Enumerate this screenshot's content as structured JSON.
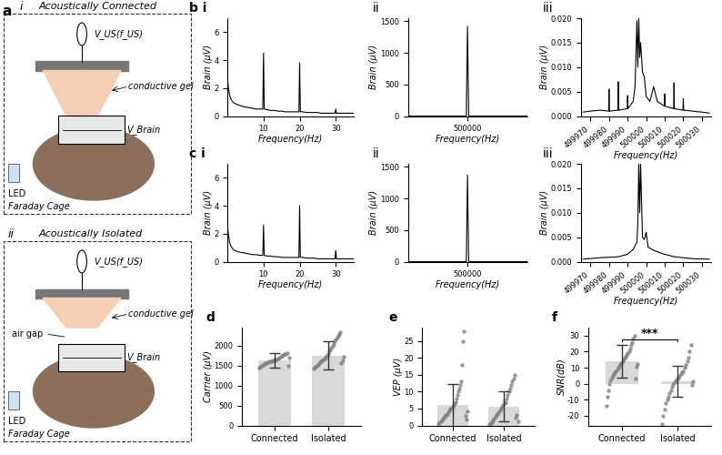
{
  "diagram": {
    "label": "a",
    "sub_i": "i",
    "title_i": "Acoustically Connected",
    "sub_ii": "ii",
    "title_ii": "Acoustically Isolated",
    "source": "V_US(f_US)",
    "gel": "conductive gel",
    "electrode": "V_Brain",
    "led": "LED",
    "cage": "Faraday Cage",
    "air": "air gap"
  },
  "chart_data": [
    {
      "type": "line",
      "panel": "b i",
      "xlabel": "Frequency(Hz)",
      "ylabel": "Brain (μV)",
      "color": "#000000",
      "x": [
        0,
        0.3,
        0.6,
        1,
        1.5,
        2,
        3,
        4,
        5,
        6,
        7,
        8,
        9,
        9.8,
        10,
        10.2,
        11,
        12,
        13,
        14,
        15,
        16,
        17,
        18,
        19,
        19.8,
        20,
        20.2,
        21,
        22,
        23,
        24,
        25,
        26,
        27,
        28,
        29,
        29.8,
        30,
        30.2,
        31,
        32,
        33,
        34,
        35
      ],
      "values": [
        2.6,
        2.0,
        1.5,
        1.2,
        1.0,
        0.9,
        0.8,
        0.7,
        0.65,
        0.6,
        0.55,
        0.5,
        0.5,
        0.5,
        4.5,
        0.5,
        0.45,
        0.4,
        0.4,
        0.35,
        0.35,
        0.3,
        0.3,
        0.3,
        0.3,
        0.3,
        3.8,
        0.3,
        0.3,
        0.25,
        0.25,
        0.25,
        0.25,
        0.2,
        0.2,
        0.2,
        0.2,
        0.2,
        0.5,
        0.2,
        0.2,
        0.2,
        0.2,
        0.2,
        0.2
      ],
      "xlim": [
        0,
        35
      ],
      "xticks": [
        10,
        20,
        30
      ],
      "ylim": [
        0,
        7
      ],
      "yticks": [
        0,
        2,
        4,
        6
      ]
    },
    {
      "type": "line",
      "panel": "ii",
      "xlabel": "Frequency(Hz)",
      "ylabel": "Brain (μV)",
      "color": "#000000",
      "x": [
        499950,
        499999,
        500000,
        500001,
        500050
      ],
      "values": [
        0,
        0,
        1420,
        0,
        0
      ],
      "xlim": [
        499950,
        500050
      ],
      "xticks": [
        500000
      ],
      "ylim": [
        0,
        1550
      ],
      "yticks": [
        0,
        500,
        1000,
        1500
      ]
    },
    {
      "type": "line",
      "panel": "iii",
      "xlabel": "Frequency(Hz)",
      "ylabel": "Brain (μV)",
      "color": "#000000",
      "x": [
        499966,
        499970,
        499975,
        499979.8,
        499980,
        499980.2,
        499984.8,
        499985,
        499985.2,
        499989.8,
        499990,
        499990.2,
        499993,
        499994,
        499995,
        499995.5,
        499996,
        499996.5,
        499997,
        499998,
        499999,
        500000,
        500002,
        500004,
        500006,
        500009.8,
        500010,
        500010.2,
        500014.8,
        500015,
        500015.2,
        500019.8,
        500020,
        500020.2,
        500025,
        500030,
        500034
      ],
      "values": [
        0.0008,
        0.001,
        0.0012,
        0.001,
        0.0055,
        0.001,
        0.0012,
        0.007,
        0.0012,
        0.0015,
        0.0042,
        0.0015,
        0.003,
        0.006,
        0.0195,
        0.01,
        0.02,
        0.012,
        0.015,
        0.009,
        0.008,
        0.004,
        0.003,
        0.006,
        0.003,
        0.002,
        0.0045,
        0.002,
        0.0015,
        0.0068,
        0.0015,
        0.0012,
        0.0035,
        0.0012,
        0.001,
        0.0008,
        0.0006
      ],
      "xlim": [
        499965,
        500035
      ],
      "xticks": [
        499970,
        499980,
        499990,
        500000,
        500010,
        500020,
        500030
      ],
      "ylim": [
        0,
        0.02
      ],
      "yticks": [
        {
          "value": 0,
          "label": "0.000"
        },
        {
          "value": 0.005,
          "label": "0.005"
        },
        {
          "value": 0.01,
          "label": "0.010"
        },
        {
          "value": 0.015,
          "label": "0.015"
        },
        {
          "value": 0.02,
          "label": "0.020"
        }
      ]
    },
    {
      "type": "line",
      "panel": "c i",
      "xlabel": "Frequency(Hz)",
      "ylabel": "Brain (μV)",
      "color": "#000000",
      "x": [
        0,
        0.3,
        0.6,
        1,
        1.5,
        2,
        3,
        4,
        5,
        6,
        7,
        8,
        9,
        9.8,
        10,
        10.2,
        11,
        12,
        13,
        14,
        15,
        16,
        17,
        18,
        19,
        19.8,
        20,
        20.2,
        21,
        22,
        23,
        24,
        25,
        26,
        27,
        28,
        29,
        29.8,
        30,
        30.2,
        31,
        32,
        33,
        34,
        35
      ],
      "values": [
        2.5,
        1.9,
        1.4,
        1.1,
        0.9,
        0.8,
        0.7,
        0.65,
        0.6,
        0.55,
        0.5,
        0.5,
        0.45,
        0.45,
        2.6,
        0.45,
        0.4,
        0.4,
        0.35,
        0.35,
        0.3,
        0.3,
        0.3,
        0.3,
        0.3,
        0.3,
        4.0,
        0.3,
        0.3,
        0.25,
        0.25,
        0.25,
        0.2,
        0.2,
        0.2,
        0.2,
        0.2,
        0.2,
        0.8,
        0.2,
        0.2,
        0.2,
        0.2,
        0.2,
        0.2
      ],
      "xlim": [
        0,
        35
      ],
      "xticks": [
        10,
        20,
        30
      ],
      "ylim": [
        0,
        7
      ],
      "yticks": [
        0,
        2,
        4,
        6
      ]
    },
    {
      "type": "line",
      "panel": "ii",
      "xlabel": "Frequency(Hz)",
      "ylabel": "Brain (μV)",
      "color": "#000000",
      "x": [
        499950,
        499999,
        500000,
        500001,
        500050
      ],
      "values": [
        0,
        0,
        1370,
        0,
        0
      ],
      "xlim": [
        499950,
        500050
      ],
      "xticks": [
        500000
      ],
      "ylim": [
        0,
        1550
      ],
      "yticks": [
        0,
        500,
        1000,
        1500
      ]
    },
    {
      "type": "line",
      "panel": "iii",
      "xlabel": "Frequency(Hz)",
      "ylabel": "Brain (μV)",
      "color": "#000000",
      "x": [
        499966,
        499975,
        499985,
        499990,
        499993,
        499995,
        499995.5,
        499996,
        499996.5,
        499997,
        499998,
        499999,
        500000,
        500001,
        500003,
        500006,
        500010,
        500015,
        500020,
        500025,
        500034
      ],
      "values": [
        0.0005,
        0.0008,
        0.001,
        0.0015,
        0.0025,
        0.004,
        0.008,
        0.02,
        0.01,
        0.02,
        0.005,
        0.0045,
        0.006,
        0.003,
        0.0025,
        0.002,
        0.0015,
        0.001,
        0.0008,
        0.0006,
        0.0005
      ],
      "xlim": [
        499965,
        500035
      ],
      "xticks": [
        499970,
        499980,
        499990,
        500000,
        500010,
        500020,
        500030
      ],
      "ylim": [
        0,
        0.02
      ],
      "yticks": [
        {
          "value": 0,
          "label": "0.000"
        },
        {
          "value": 0.005,
          "label": "0.005"
        },
        {
          "value": 0.01,
          "label": "0.010"
        },
        {
          "value": 0.015,
          "label": "0.015"
        },
        {
          "value": 0.02,
          "label": "0.020"
        }
      ]
    },
    {
      "type": "bar",
      "panel": "d",
      "ylabel": "Carrier (μV)",
      "color": "#d9d9d9",
      "categories": [
        "Connected",
        "Isolated"
      ],
      "values": [
        1630,
        1750
      ],
      "error": [
        180,
        350
      ],
      "points": [
        [
          1450,
          1480,
          1500,
          1520,
          1540,
          1550,
          1560,
          1580,
          1600,
          1600,
          1610,
          1620,
          1630,
          1650,
          1660,
          1680,
          1700,
          1720,
          1740,
          1760,
          1780,
          1800,
          1820,
          1500,
          1690
        ],
        [
          1420,
          1450,
          1480,
          1500,
          1520,
          1550,
          1580,
          1600,
          1620,
          1650,
          1680,
          1700,
          1750,
          1800,
          1850,
          1900,
          1950,
          2000,
          2050,
          2100,
          2150,
          2200,
          2250,
          2300,
          2330,
          1560,
          1640,
          1720
        ]
      ],
      "ylim": [
        0,
        2450
      ],
      "yticks": [
        0,
        500,
        1000,
        1500,
        2000
      ]
    },
    {
      "type": "bar",
      "panel": "e",
      "ylabel": "VEP (μV)",
      "color": "#d9d9d9",
      "categories": [
        "Connected",
        "Isolated"
      ],
      "values": [
        6,
        5.6
      ],
      "error": [
        6.3,
        4.5
      ],
      "points": [
        [
          0.5,
          1,
          1.2,
          1.5,
          2,
          2.2,
          2.5,
          3,
          3,
          3.5,
          4,
          4.5,
          5,
          5,
          5.5,
          6,
          6.5,
          7,
          8,
          9,
          10,
          11,
          12,
          13,
          18,
          25,
          28,
          2.8,
          1.8,
          4.2
        ],
        [
          0.3,
          0.8,
          1,
          1.5,
          2,
          2.5,
          3,
          3.5,
          4,
          4.5,
          5,
          5.5,
          6,
          6.5,
          7,
          8,
          9,
          10,
          11,
          12,
          13,
          14,
          15,
          2.2,
          3.2,
          1.2
        ]
      ],
      "ylim": [
        0,
        29
      ],
      "yticks": [
        0,
        5,
        10,
        15,
        20,
        25
      ]
    },
    {
      "type": "bar",
      "panel": "f",
      "ylabel": "SNR(dB)",
      "color": "#d9d9d9",
      "categories": [
        "Connected",
        "Isolated"
      ],
      "values": [
        14,
        1.5
      ],
      "error": [
        10,
        9.5
      ],
      "points": [
        [
          -14,
          -8,
          -4,
          0,
          2,
          4,
          5,
          6,
          7,
          8,
          9,
          10,
          11,
          12,
          13,
          14,
          15,
          16,
          17,
          18,
          19,
          20,
          22,
          24,
          26,
          28,
          30,
          3,
          10.5,
          12.5
        ],
        [
          -25,
          -20,
          -16,
          -12,
          -10,
          -8,
          -6,
          -4,
          -2,
          0,
          1,
          2,
          3,
          4,
          5,
          6,
          7,
          8,
          10,
          12,
          14,
          16,
          20,
          24,
          -1,
          1.5
        ]
      ],
      "annotation": "***",
      "ylim": [
        -26,
        35
      ],
      "yticks": [
        -20,
        -10,
        0,
        10,
        20,
        30
      ]
    }
  ]
}
